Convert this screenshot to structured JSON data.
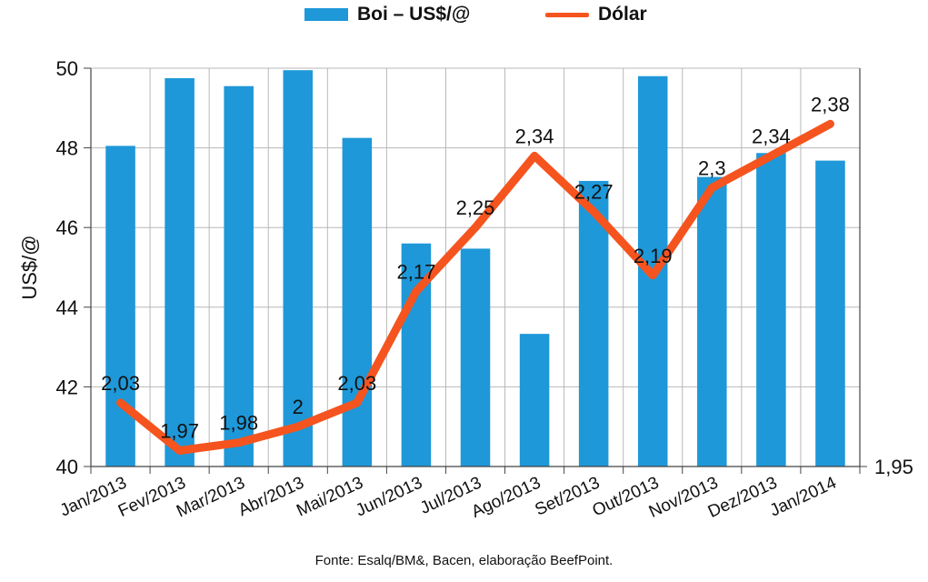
{
  "chart_data": {
    "type": "bar+line",
    "categories": [
      "Jan/2013",
      "Fev/2013",
      "Mar/2013",
      "Abr/2013",
      "Mai/2013",
      "Jun/2013",
      "Jul/2013",
      "Ago/2013",
      "Set/2013",
      "Out/2013",
      "Nov/2013",
      "Dez/2013",
      "Jan/2014"
    ],
    "series": [
      {
        "name": "Boi – US$/@",
        "type": "bar",
        "axis": "left",
        "values": [
          48.05,
          49.75,
          49.55,
          49.95,
          48.25,
          45.6,
          45.47,
          43.33,
          47.17,
          49.8,
          47.27,
          47.87,
          47.68
        ]
      },
      {
        "name": "Dólar",
        "type": "line",
        "axis": "right",
        "values": [
          2.03,
          1.97,
          1.98,
          2,
          2.03,
          2.17,
          2.25,
          2.34,
          2.27,
          2.19,
          2.3,
          2.34,
          2.38
        ],
        "labels": [
          "2,03",
          "1,97",
          "1,98",
          "2",
          "2,03",
          "2,17",
          "2,25",
          "2,34",
          "2,27",
          "2,19",
          "2,3",
          "2,34",
          "2,38"
        ]
      }
    ],
    "y_left": {
      "label": "US$/@",
      "range": [
        40,
        50
      ],
      "ticks": [
        40,
        42,
        44,
        46,
        48,
        50
      ]
    },
    "y_right": {
      "range": [
        1.95,
        2.45
      ],
      "tick_labels": [
        "1,95"
      ]
    },
    "grid": true,
    "legend_position": "top",
    "colors": {
      "bar": "#1e98d8",
      "line": "#f5541f",
      "grid": "#b8b8b8",
      "axis": "#444444"
    }
  },
  "legend": {
    "bar_label": "Boi – US$/@",
    "line_label": "Dólar"
  },
  "source": "Fonte: Esalq/BM&, Bacen, elaboração BeefPoint."
}
